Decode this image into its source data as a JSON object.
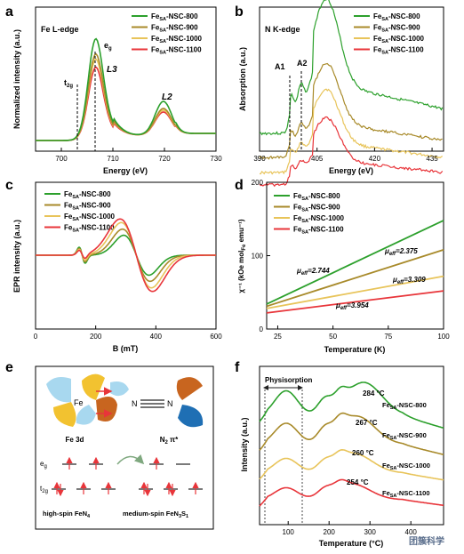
{
  "colors": {
    "s800": "#2ca02c",
    "s900": "#a88a2a",
    "s1000": "#e8c45a",
    "s1100": "#e8353a"
  },
  "legend_entries": [
    {
      "base": "Fe",
      "sub": "SA",
      "suffix": "-NSC-800",
      "color": "#2ca02c"
    },
    {
      "base": "Fe",
      "sub": "SA",
      "suffix": "-NSC-900",
      "color": "#a88a2a"
    },
    {
      "base": "Fe",
      "sub": "SA",
      "suffix": "-NSC-1000",
      "color": "#e8c45a"
    },
    {
      "base": "Fe",
      "sub": "SA",
      "suffix": "-NSC-1100",
      "color": "#e8353a"
    }
  ],
  "panels": {
    "a": {
      "letter": "a",
      "title": "Fe L-edge",
      "eg": "e",
      "eg_sub": "g",
      "t2g": "t",
      "t2g_sub": "2g",
      "l3": "L3",
      "l2": "L2"
    },
    "b": {
      "letter": "b",
      "title": "N K-edge",
      "a1": "A1",
      "a2": "A2"
    },
    "c": {
      "letter": "c"
    },
    "d": {
      "letter": "d",
      "mu_labels": [
        {
          "mu": "μ",
          "sub": "eff",
          "value": "=2.375"
        },
        {
          "mu": "μ",
          "sub": "eff",
          "value": "=2.744"
        },
        {
          "mu": "μ",
          "sub": "eff",
          "value": "=3.309"
        },
        {
          "mu": "μ",
          "sub": "eff",
          "value": "=3.954"
        }
      ]
    },
    "e": {
      "letter": "e",
      "fe": "Fe",
      "n": "N",
      "fe3d": "Fe 3d",
      "n2pi": "N",
      "n2pi_sub": "2",
      "n2pi_tail": " π*",
      "eg": "e",
      "eg_sub": "g",
      "t2g": "t",
      "t2g_sub": "2g",
      "high_spin": "high-spin FeN",
      "high_spin_sub": "4",
      "medium_spin": "medium-spin FeN",
      "medium_spin_sub1": "3",
      "medium_spin_mid": "S",
      "medium_spin_sub2": "1"
    },
    "f": {
      "letter": "f",
      "physisorption": "Physisorption",
      "peaks": [
        "284 °C",
        "267 °C",
        "260 °C",
        "254 °C"
      ]
    }
  },
  "watermark": "团簇科学",
  "chart_data": [
    {
      "panel": "a",
      "type": "line",
      "title": "Fe L-edge",
      "xlabel": "Energy (eV)",
      "ylabel": "Normalized intensity (a.u.)",
      "xlim": [
        695,
        730
      ],
      "xticks": [
        700,
        710,
        720,
        730
      ],
      "series": [
        {
          "name": "FeSA-NSC-800",
          "color": "#2ca02c",
          "peaks": [
            [
              706.6,
              1.0
            ],
            [
              719.8,
              0.38
            ]
          ]
        },
        {
          "name": "FeSA-NSC-900",
          "color": "#a88a2a",
          "peaks": [
            [
              706.6,
              0.85
            ],
            [
              719.8,
              0.3
            ]
          ]
        },
        {
          "name": "FeSA-NSC-1000",
          "color": "#e8c45a",
          "peaks": [
            [
              706.6,
              0.8
            ],
            [
              719.8,
              0.28
            ]
          ]
        },
        {
          "name": "FeSA-NSC-1100",
          "color": "#e8353a",
          "peaks": [
            [
              706.6,
              0.72
            ],
            [
              719.8,
              0.26
            ]
          ]
        }
      ]
    },
    {
      "panel": "b",
      "type": "line",
      "title": "N K-edge",
      "xlabel": "Energy (eV)",
      "ylabel": "Absorption (a.u.)",
      "xlim": [
        390,
        438
      ],
      "xticks": [
        390,
        405,
        420,
        435
      ],
      "series": [
        {
          "name": "FeSA-NSC-800",
          "color": "#2ca02c",
          "peak_x": 407.5
        },
        {
          "name": "FeSA-NSC-900",
          "color": "#a88a2a",
          "peak_x": 407.5
        },
        {
          "name": "FeSA-NSC-1000",
          "color": "#e8c45a",
          "peak_x": 407.5
        },
        {
          "name": "FeSA-NSC-1100",
          "color": "#e8353a",
          "peak_x": 407.5
        }
      ]
    },
    {
      "panel": "c",
      "type": "line",
      "xlabel": "B (mT)",
      "ylabel": "EPR intensity (a.u.)",
      "xlim": [
        0,
        600
      ],
      "xticks": [
        0,
        200,
        400,
        600
      ],
      "series": [
        {
          "name": "FeSA-NSC-800",
          "color": "#2ca02c"
        },
        {
          "name": "FeSA-NSC-900",
          "color": "#a88a2a"
        },
        {
          "name": "FeSA-NSC-1000",
          "color": "#e8c45a"
        },
        {
          "name": "FeSA-NSC-1100",
          "color": "#e8353a"
        }
      ]
    },
    {
      "panel": "d",
      "type": "line",
      "xlabel": "Temperature (K)",
      "ylabel": "χ⁻¹ (kOe mol_Fe emu⁻¹)",
      "xlim": [
        20,
        100
      ],
      "ylim": [
        0,
        200
      ],
      "xticks": [
        25,
        50,
        75,
        100
      ],
      "yticks": [
        0,
        100,
        200
      ],
      "series": [
        {
          "name": "FeSA-NSC-800",
          "color": "#2ca02c",
          "x": [
            20,
            100
          ],
          "y": [
            34,
            148
          ]
        },
        {
          "name": "FeSA-NSC-900",
          "color": "#a88a2a",
          "x": [
            20,
            100
          ],
          "y": [
            31,
            108
          ]
        },
        {
          "name": "FeSA-NSC-1000",
          "color": "#e8c45a",
          "x": [
            20,
            100
          ],
          "y": [
            28,
            72
          ]
        },
        {
          "name": "FeSA-NSC-1100",
          "color": "#e8353a",
          "x": [
            20,
            100
          ],
          "y": [
            22,
            52
          ]
        }
      ]
    },
    {
      "panel": "f",
      "type": "line",
      "xlabel": "Temperature (°C)",
      "ylabel": "Intensity (a.u.)",
      "xlim": [
        30,
        480
      ],
      "xticks": [
        100,
        200,
        300,
        400
      ],
      "series": [
        {
          "name": "FeSA-NSC-800",
          "color": "#2ca02c",
          "peak": "284 °C"
        },
        {
          "name": "FeSA-NSC-900",
          "color": "#a88a2a",
          "peak": "267 °C"
        },
        {
          "name": "FeSA-NSC-1000",
          "color": "#e8c45a",
          "peak": "260 °C"
        },
        {
          "name": "FeSA-NSC-1100",
          "color": "#e8353a",
          "peak": "254 °C"
        }
      ]
    }
  ]
}
